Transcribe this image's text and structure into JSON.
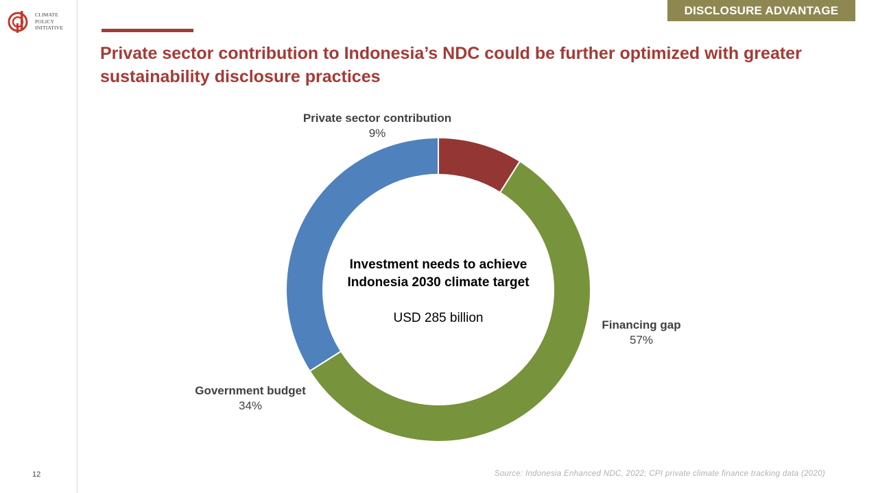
{
  "logo": {
    "lines": [
      "CLIMATE",
      "POLICY",
      "INITIATIVE"
    ],
    "color": "#c0392b"
  },
  "section_tag": "DISCLOSURE ADVANTAGE",
  "title": "Private sector contribution to Indonesia’s NDC could be further optimized with greater sustainability disclosure practices",
  "page_number": "12",
  "source": "Source: Indonesia Enhanced NDC, 2022; CPI private climate finance tracking data (2020)",
  "colors": {
    "accent": "#a53a35",
    "tag_background": "#8e8751"
  },
  "chart_data": {
    "type": "pie",
    "center_title": [
      "Investment needs to achieve",
      "Indonesia 2030 climate target"
    ],
    "center_value": "USD 285 billion",
    "slices": [
      {
        "name": "Private sector contribution",
        "value": 9,
        "label": "9%",
        "color": "#943634"
      },
      {
        "name": "Financing gap",
        "value": 57,
        "label": "57%",
        "color": "#77933c"
      },
      {
        "name": "Government budget",
        "value": 34,
        "label": "34%",
        "color": "#4f81bd"
      }
    ],
    "start_angle_deg": 0,
    "direction": "clockwise",
    "donut": true
  }
}
